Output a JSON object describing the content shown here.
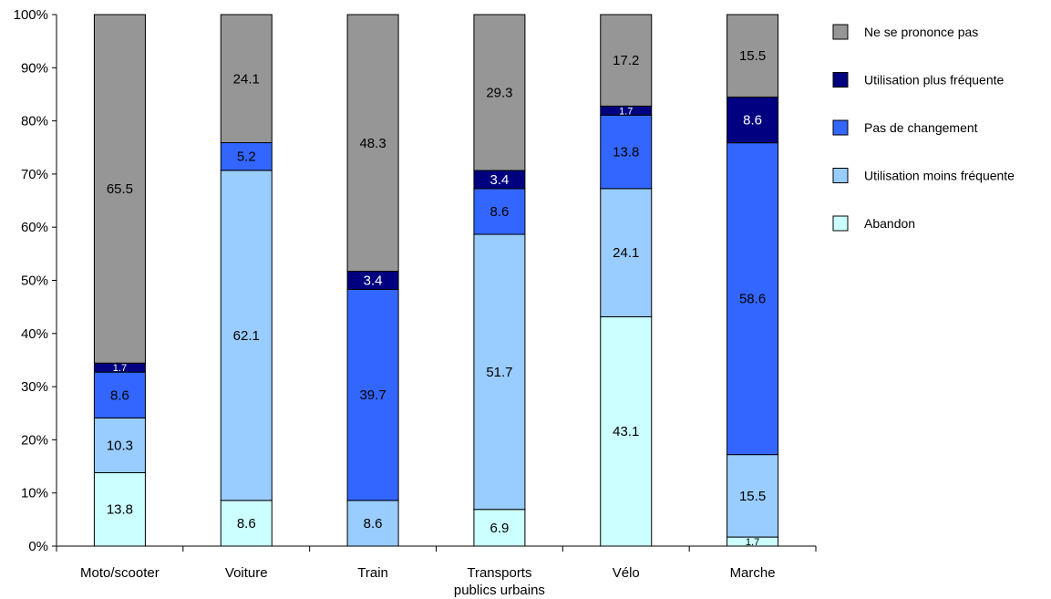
{
  "chart_data": {
    "type": "bar",
    "stacked": true,
    "percent_stacked": true,
    "categories": [
      [
        "Moto/scooter"
      ],
      [
        "Voiture"
      ],
      [
        "Train"
      ],
      [
        "Transports",
        "publics urbains"
      ],
      [
        "Vélo"
      ],
      [
        "Marche"
      ]
    ],
    "series": [
      {
        "name": "Abandon",
        "color": "#CCFFFF",
        "values": [
          13.8,
          8.6,
          0,
          6.9,
          43.1,
          1.7
        ]
      },
      {
        "name": "Utilisation moins fréquente",
        "color": "#99CCFF",
        "values": [
          10.3,
          62.1,
          8.6,
          51.7,
          24.1,
          15.5
        ]
      },
      {
        "name": "Pas de changement",
        "color": "#3366FF",
        "values": [
          8.6,
          5.2,
          39.7,
          8.6,
          13.8,
          58.6
        ]
      },
      {
        "name": "Utilisation plus fréquente",
        "color": "#000080",
        "values": [
          1.7,
          0,
          3.4,
          3.4,
          1.7,
          8.6
        ]
      },
      {
        "name": "Ne se prononce pas",
        "color": "#969696",
        "values": [
          65.5,
          24.1,
          48.3,
          29.3,
          17.2,
          15.5
        ]
      }
    ],
    "legend_order": [
      "Ne se prononce pas",
      "Utilisation plus fréquente",
      "Pas de changement",
      "Utilisation moins fréquente",
      "Abandon"
    ],
    "yticks": [
      "0%",
      "10%",
      "20%",
      "30%",
      "40%",
      "50%",
      "60%",
      "70%",
      "80%",
      "90%",
      "100%"
    ],
    "ylim": [
      0,
      100
    ],
    "legend_position": "right",
    "grid": false,
    "title": "",
    "xlabel": "",
    "ylabel": ""
  }
}
